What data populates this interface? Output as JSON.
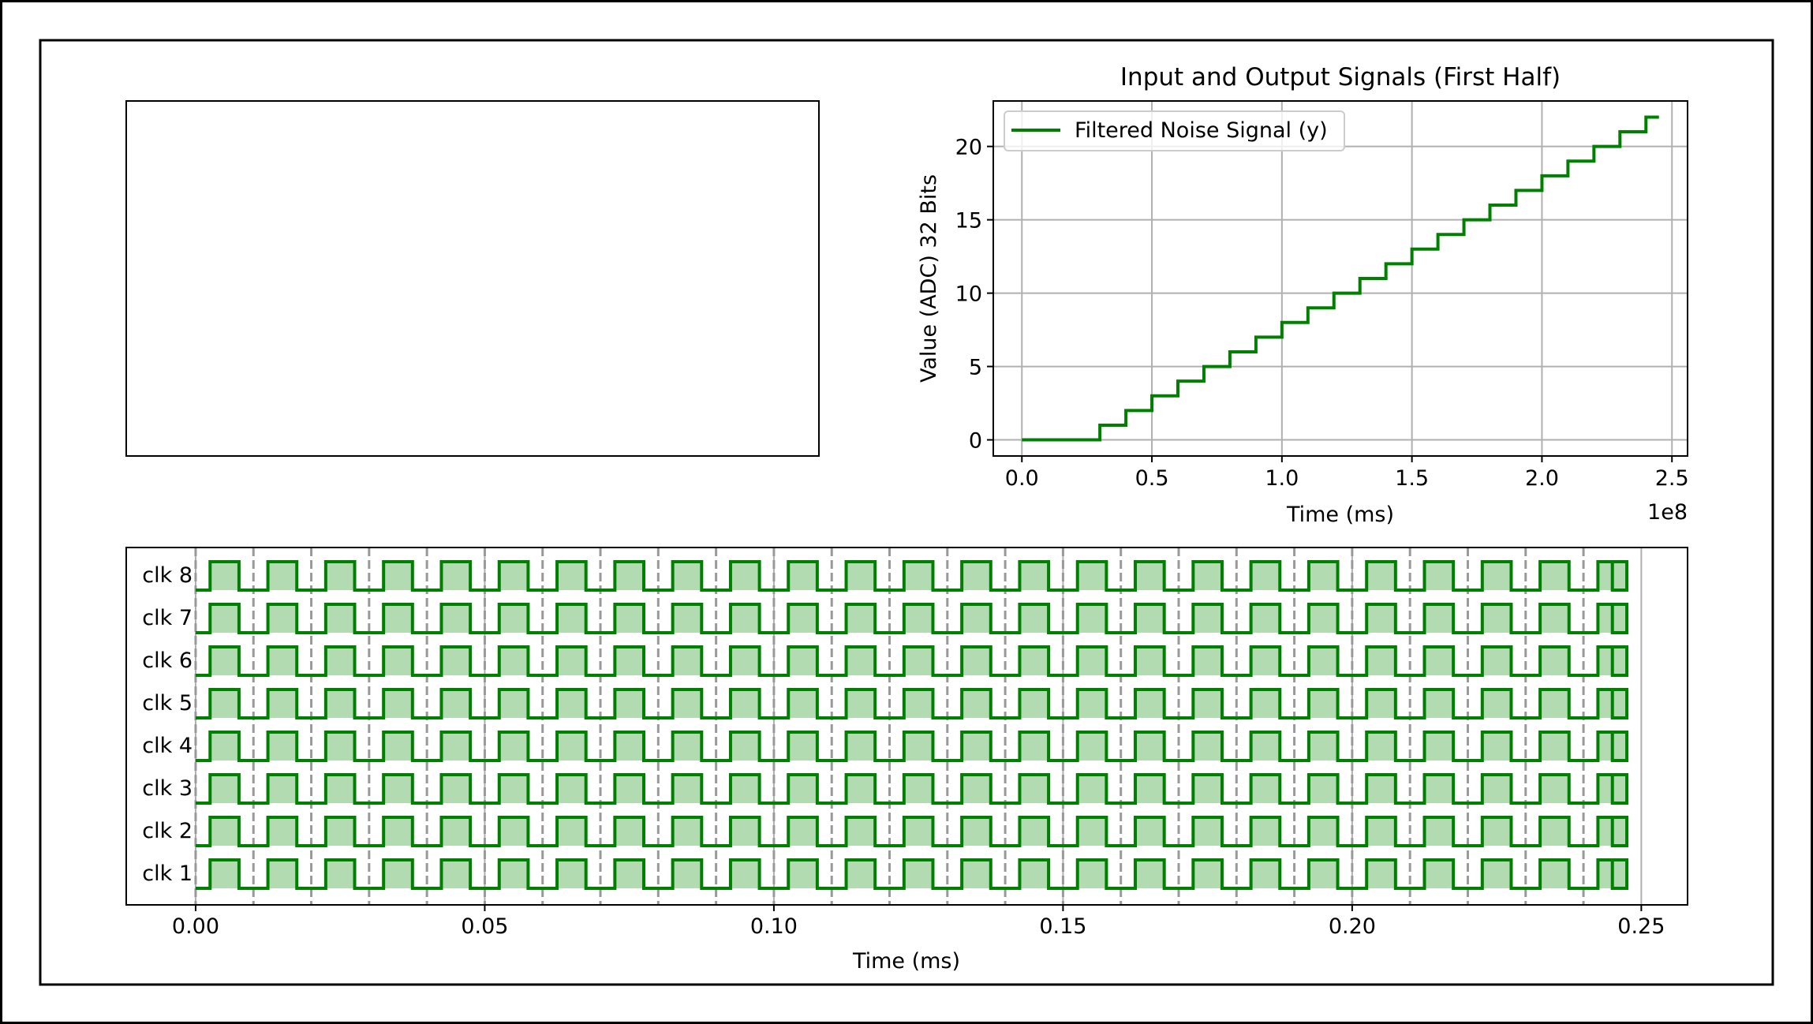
{
  "chart_data": [
    {
      "type": "empty",
      "title": "",
      "description_visible": false
    },
    {
      "type": "line",
      "step": true,
      "title": "Input and Output Signals (First Half)",
      "xlabel": "Time (ms)",
      "ylabel": "Value (ADC) 32 Bits",
      "x_offset_label": "1e8",
      "xlim": [
        -0.11,
        2.56
      ],
      "ylim": [
        -1.1,
        23.1
      ],
      "xticks": [
        0.0,
        0.5,
        1.0,
        1.5,
        2.0,
        2.5
      ],
      "xtick_labels": [
        "0.0",
        "0.5",
        "1.0",
        "1.5",
        "2.0",
        "2.5"
      ],
      "yticks": [
        0,
        5,
        10,
        15,
        20
      ],
      "ytick_labels": [
        "0",
        "5",
        "10",
        "15",
        "20"
      ],
      "grid": true,
      "legend_position": "upper-left",
      "color": "#008000",
      "series": [
        {
          "name": "Filtered Noise Signal (y)",
          "x": [
            0.0,
            0.3,
            0.4,
            0.5,
            0.6,
            0.7,
            0.8,
            0.9,
            1.0,
            1.1,
            1.2,
            1.3,
            1.4,
            1.5,
            1.6,
            1.7,
            1.8,
            1.9,
            2.0,
            2.1,
            2.2,
            2.3,
            2.4,
            2.45
          ],
          "y": [
            0,
            1,
            2,
            3,
            4,
            5,
            6,
            7,
            8,
            9,
            10,
            11,
            12,
            13,
            14,
            15,
            16,
            17,
            18,
            19,
            20,
            21,
            22,
            22
          ]
        }
      ]
    },
    {
      "type": "timing",
      "title": "",
      "xlabel": "Time (ms)",
      "xlim": [
        -0.012,
        0.258
      ],
      "xticks": [
        0.0,
        0.05,
        0.1,
        0.15,
        0.2,
        0.25
      ],
      "xtick_labels": [
        "0.00",
        "0.05",
        "0.10",
        "0.15",
        "0.20",
        "0.25"
      ],
      "grid": true,
      "color": "#008000",
      "fill_color": "#b2dbb2",
      "signals": [
        "clk 1",
        "clk 2",
        "clk 3",
        "clk 4",
        "clk 5",
        "clk 6",
        "clk 7",
        "clk 8"
      ],
      "clock_start": 0.0,
      "clock_end": 0.245,
      "clock_period": 0.01,
      "high_start_in_period": 0.0025,
      "high_end_in_period": 0.0075,
      "low_value": 0,
      "high_value": 1,
      "dashed_marker_times": [
        0.0,
        0.01,
        0.02,
        0.03,
        0.04,
        0.05,
        0.06,
        0.07,
        0.08,
        0.09,
        0.1,
        0.11,
        0.12,
        0.13,
        0.14,
        0.15,
        0.16,
        0.17,
        0.18,
        0.19,
        0.2,
        0.21,
        0.22,
        0.23,
        0.24
      ]
    }
  ]
}
